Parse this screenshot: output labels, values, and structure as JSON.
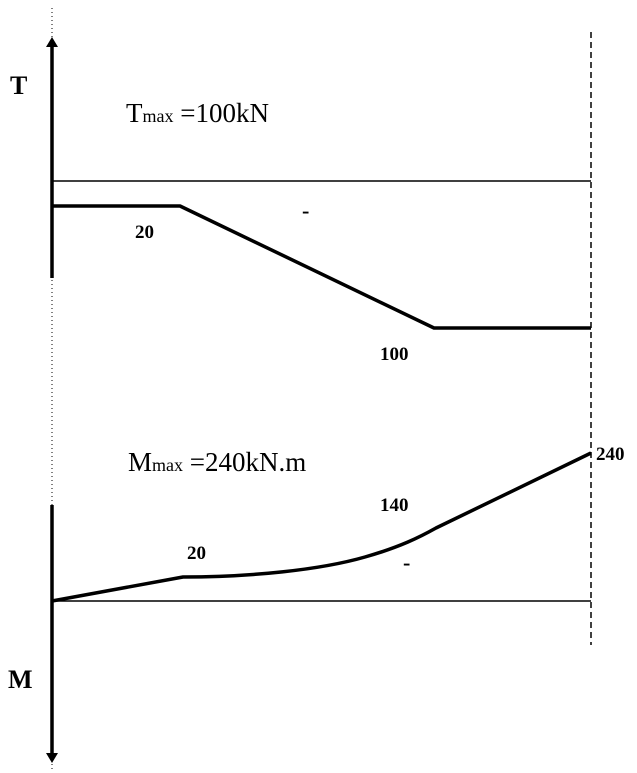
{
  "shear_diagram": {
    "axis_label": "T",
    "max_symbol": "T",
    "max_subscript": "max",
    "max_value": " =100kN",
    "label_start": "20",
    "label_end": "100",
    "sign": "-"
  },
  "moment_diagram": {
    "axis_label": "M",
    "max_symbol": "M",
    "max_subscript": "max",
    "max_value": " =240kN.m",
    "label_first": "20",
    "label_second": "140",
    "label_end": "240",
    "sign": "-"
  }
}
